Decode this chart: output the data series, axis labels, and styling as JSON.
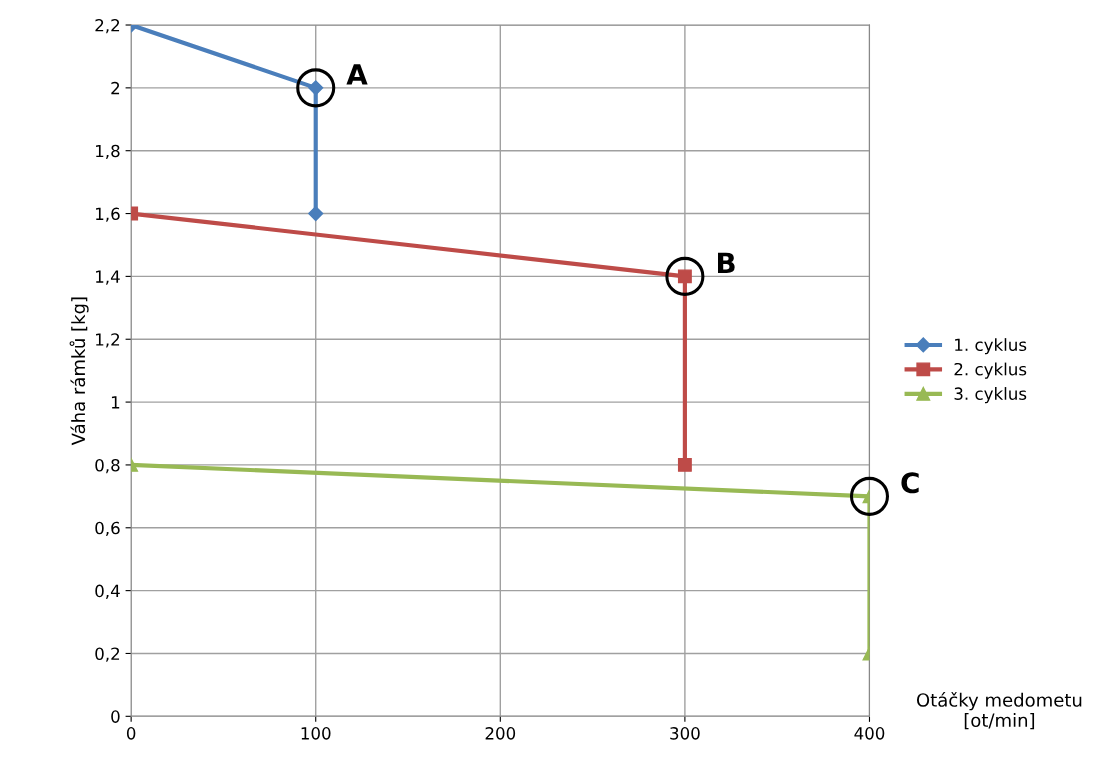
{
  "chart_data": {
    "type": "line",
    "xlabel": "Otáčky medometu\n[ot/min]",
    "ylabel": "Váha rámků [kg]",
    "series": [
      {
        "name": "1. cyklus",
        "color": "#4a7ebb",
        "marker": "diamond",
        "x": [
          0,
          100,
          100
        ],
        "values": [
          2.2,
          2.0,
          1.6
        ]
      },
      {
        "name": "2. cyklus",
        "color": "#be4b48",
        "marker": "square",
        "x": [
          0,
          300,
          300
        ],
        "values": [
          1.6,
          1.4,
          0.8
        ]
      },
      {
        "name": "3. cyklus",
        "color": "#98b954",
        "marker": "triangle",
        "x": [
          0,
          400,
          400
        ],
        "values": [
          0.8,
          0.7,
          0.2
        ]
      }
    ],
    "annotations": [
      {
        "text": "A",
        "x": 100,
        "y": 2.0
      },
      {
        "text": "B",
        "x": 300,
        "y": 1.4
      },
      {
        "text": "C",
        "x": 400,
        "y": 0.7
      }
    ],
    "xlim": [
      0,
      400
    ],
    "xticks": [
      0,
      100,
      200,
      300,
      400
    ],
    "ylim": [
      0,
      2.2
    ],
    "yticks": [
      0,
      {
        "value": 0.2,
        "label": "0,2"
      },
      {
        "value": 0.4,
        "label": "0,4"
      },
      {
        "value": 0.6,
        "label": "0,6"
      },
      {
        "value": 0.8,
        "label": "0,8"
      },
      1,
      {
        "value": 1.2,
        "label": "1,2"
      },
      {
        "value": 1.4,
        "label": "1,4"
      },
      {
        "value": 1.6,
        "label": "1,6"
      },
      {
        "value": 1.8,
        "label": "1,8"
      },
      2,
      {
        "value": 2.2,
        "label": "2,2"
      }
    ],
    "grid": true,
    "legend": "right",
    "line_style": "solid"
  }
}
